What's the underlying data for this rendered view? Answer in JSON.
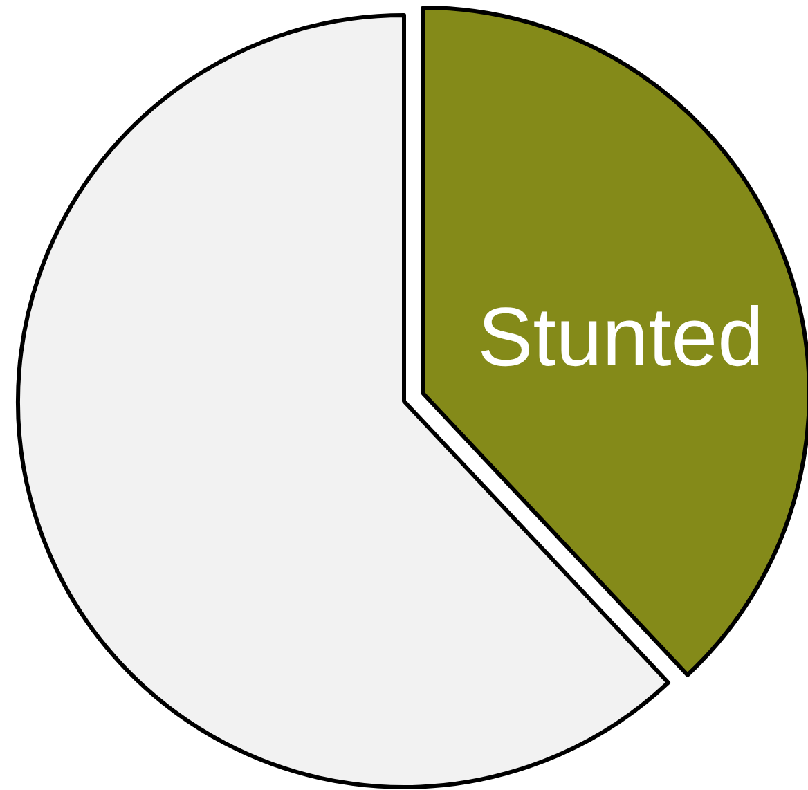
{
  "chart_data": {
    "type": "pie",
    "categories": [
      "Stunted",
      null
    ],
    "values": [
      38,
      62
    ],
    "colors": [
      "#848a19",
      "#f2f2f2"
    ]
  }
}
